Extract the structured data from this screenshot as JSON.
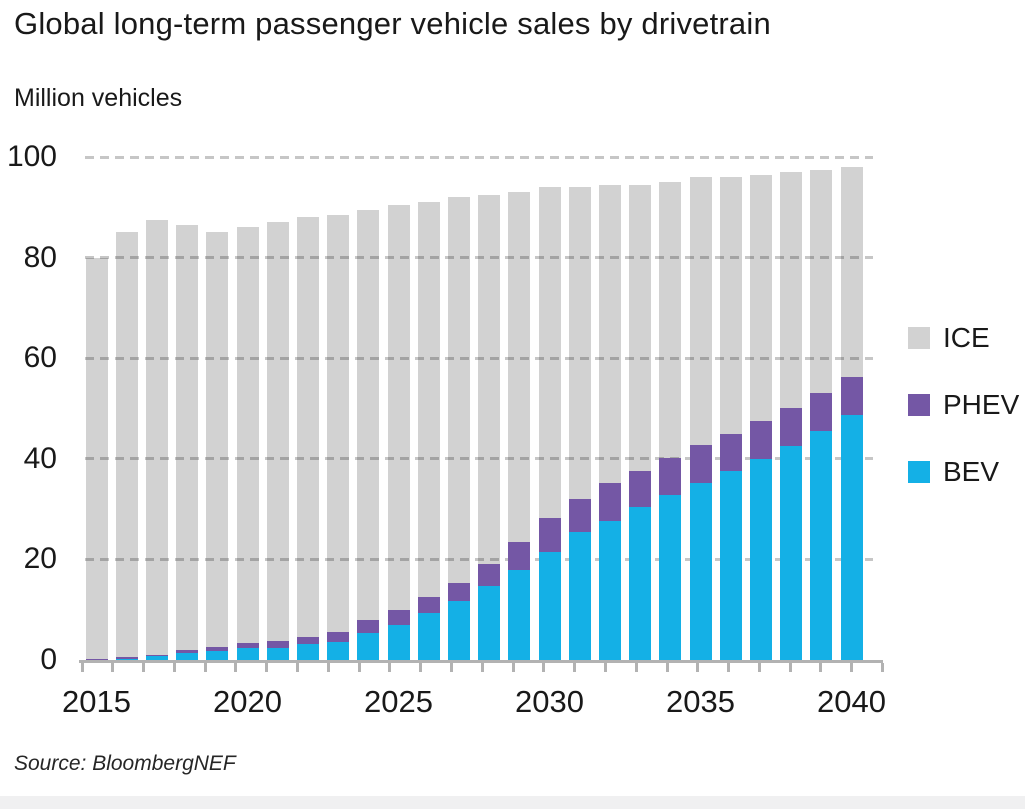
{
  "title": "Global long-term passenger vehicle sales by drivetrain",
  "unit_label": "Million vehicles",
  "source": "Source: BloombergNEF",
  "colors": {
    "bev": "#14b0e6",
    "phev": "#7457a5",
    "ice": "#d2d2d2",
    "grid": "#c6c6c6",
    "axis": "#b2b2b2",
    "text": "#191919"
  },
  "legend": [
    {
      "key": "ice",
      "label": "ICE"
    },
    {
      "key": "phev",
      "label": "PHEV"
    },
    {
      "key": "bev",
      "label": "BEV"
    }
  ],
  "chart_data": {
    "type": "bar",
    "stacked": true,
    "stack_order_bottom_to_top": [
      "BEV",
      "PHEV",
      "ICE"
    ],
    "title": "Global long-term passenger vehicle sales by drivetrain",
    "xlabel": "",
    "ylabel": "Million vehicles",
    "x": [
      2015,
      2016,
      2017,
      2018,
      2019,
      2020,
      2021,
      2022,
      2023,
      2024,
      2025,
      2026,
      2027,
      2028,
      2029,
      2030,
      2031,
      2032,
      2033,
      2034,
      2035,
      2036,
      2037,
      2038,
      2039,
      2040
    ],
    "x_tick_labels": [
      2015,
      2020,
      2025,
      2030,
      2035,
      2040
    ],
    "ylim": [
      0,
      100
    ],
    "yticks": [
      0,
      20,
      40,
      60,
      80,
      100
    ],
    "grid": "horizontal-dashed",
    "legend_position": "right",
    "series": [
      {
        "name": "BEV",
        "color": "#14b0e6",
        "values": [
          0.1,
          0.1,
          0.7,
          1.4,
          1.8,
          2.4,
          2.4,
          3.2,
          3.6,
          5.3,
          7.0,
          9.3,
          11.7,
          14.7,
          17.8,
          21.5,
          25.4,
          27.7,
          30.4,
          32.8,
          35.1,
          37.5,
          40.0,
          42.5,
          45.5,
          48.8
        ]
      },
      {
        "name": "PHEV",
        "color": "#7457a5",
        "values": [
          0.1,
          0.5,
          0.2,
          0.6,
          0.7,
          0.9,
          1.3,
          1.3,
          2.0,
          2.7,
          3.0,
          3.2,
          3.7,
          4.3,
          5.7,
          6.7,
          6.6,
          7.5,
          7.2,
          7.3,
          7.6,
          7.5,
          7.5,
          7.6,
          7.6,
          7.4
        ]
      },
      {
        "name": "ICE",
        "color": "#d2d2d2",
        "values": [
          79.8,
          84.4,
          86.6,
          84.5,
          82.5,
          82.7,
          83.3,
          83.5,
          82.9,
          81.5,
          80.5,
          78.5,
          76.6,
          73.5,
          69.5,
          65.8,
          62.0,
          59.3,
          56.9,
          54.9,
          53.3,
          51.0,
          49.0,
          46.9,
          44.4,
          41.8
        ]
      }
    ],
    "totals": [
      80,
      85,
      87.5,
      86.5,
      85,
      86,
      87,
      88,
      88.5,
      89.5,
      90.5,
      91,
      92,
      92.5,
      93,
      94,
      94,
      94.5,
      94.5,
      95,
      96,
      96,
      96.5,
      97,
      97.5,
      98
    ]
  }
}
